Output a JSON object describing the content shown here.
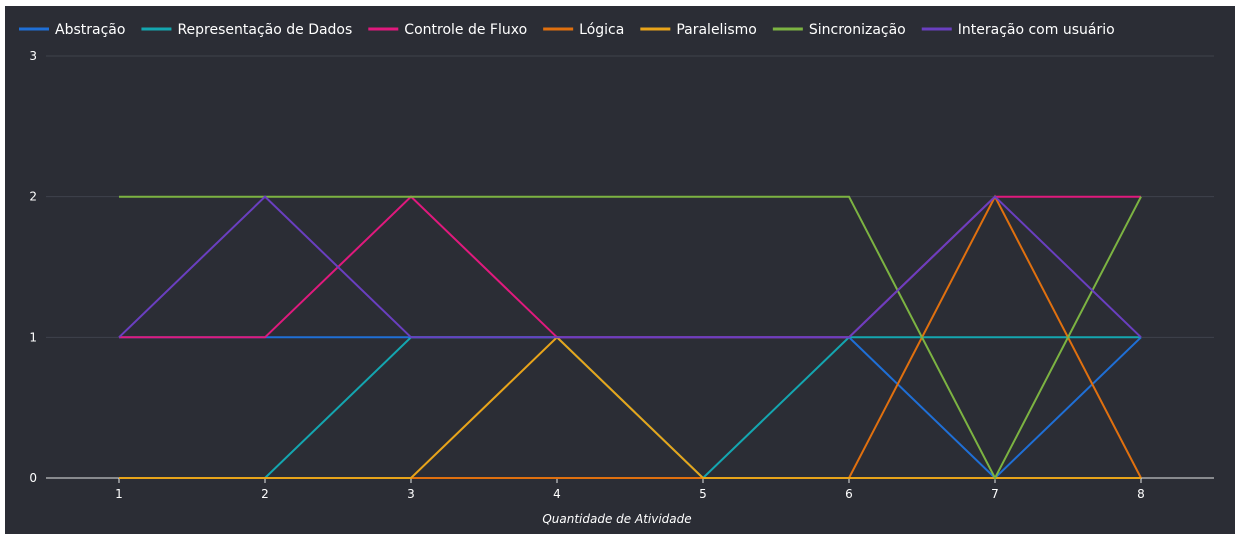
{
  "chart_data": {
    "type": "line",
    "title": "",
    "xlabel": "Quantidade de Atividade",
    "ylabel": "",
    "x": [
      1,
      2,
      3,
      4,
      5,
      6,
      7,
      8
    ],
    "xlim": [
      0.5,
      8.5
    ],
    "ylim": [
      0,
      3
    ],
    "yticks": [
      0,
      1,
      2,
      3
    ],
    "grid": true,
    "legend_position": "top",
    "background_color": "#2b2d35",
    "series": [
      {
        "name": "Abstração",
        "color": "#1f6fd6",
        "values": [
          1,
          1,
          1,
          1,
          1,
          1,
          0,
          1
        ]
      },
      {
        "name": "Representação de Dados",
        "color": "#14a6b0",
        "values": [
          0,
          0,
          1,
          1,
          0,
          1,
          1,
          1
        ]
      },
      {
        "name": "Controle de Fluxo",
        "color": "#e0197d",
        "values": [
          1,
          1,
          2,
          1,
          1,
          1,
          2,
          2
        ]
      },
      {
        "name": "Lógica",
        "color": "#e0700f",
        "values": [
          0,
          0,
          0,
          0,
          0,
          0,
          2,
          0
        ]
      },
      {
        "name": "Paralelismo",
        "color": "#e8a41a",
        "values": [
          0,
          0,
          0,
          1,
          0,
          0,
          0,
          0
        ]
      },
      {
        "name": "Sincronização",
        "color": "#7cb342",
        "values": [
          2,
          2,
          2,
          2,
          2,
          2,
          0,
          2
        ]
      },
      {
        "name": "Interação com usuário",
        "color": "#6a3fc0",
        "values": [
          1,
          2,
          1,
          1,
          1,
          1,
          2,
          1
        ]
      }
    ]
  }
}
